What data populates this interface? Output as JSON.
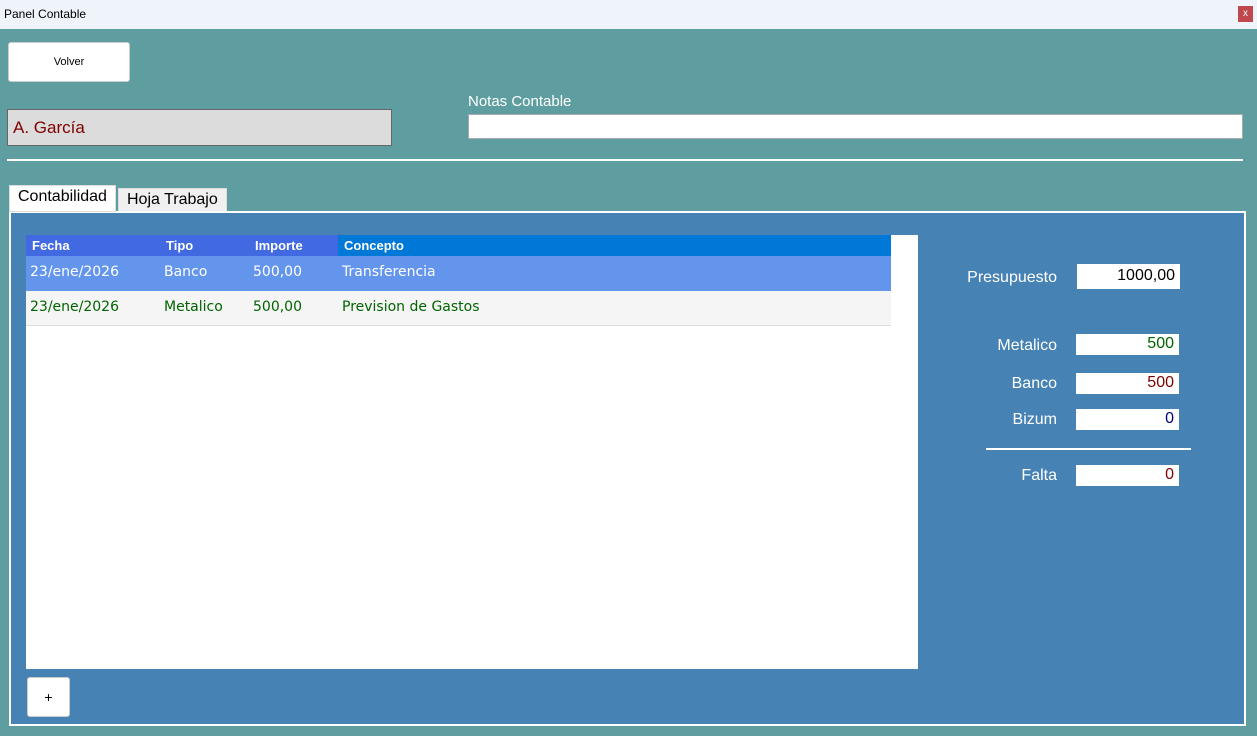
{
  "window": {
    "title": "Panel Contable",
    "close": "x"
  },
  "volver": "Volver",
  "client_name": "A. García",
  "notes": {
    "label": "Notas Contable",
    "value": ""
  },
  "tabs": [
    {
      "label": "Contabilidad",
      "active": true
    },
    {
      "label": "Hoja Trabajo",
      "active": false
    }
  ],
  "table": {
    "columns": [
      "Fecha",
      "Tipo",
      "Importe",
      "Concepto"
    ],
    "rows": [
      [
        "23/ene/2026",
        "Banco",
        "500,00",
        "Transferencia"
      ],
      [
        "23/ene/2026",
        "Metalico",
        "500,00",
        "Prevision de Gastos"
      ]
    ]
  },
  "add_button": "+",
  "summary": {
    "presupuesto": {
      "label": "Presupuesto",
      "value": "1000,00"
    },
    "metalico": {
      "label": "Metalico",
      "value": "500",
      "color": "#006400"
    },
    "banco": {
      "label": "Banco",
      "value": "500",
      "color": "#800000"
    },
    "bizum": {
      "label": "Bizum",
      "value": "0",
      "color": "#000080"
    },
    "falta": {
      "label": "Falta",
      "value": "0",
      "color": "#800000"
    }
  }
}
